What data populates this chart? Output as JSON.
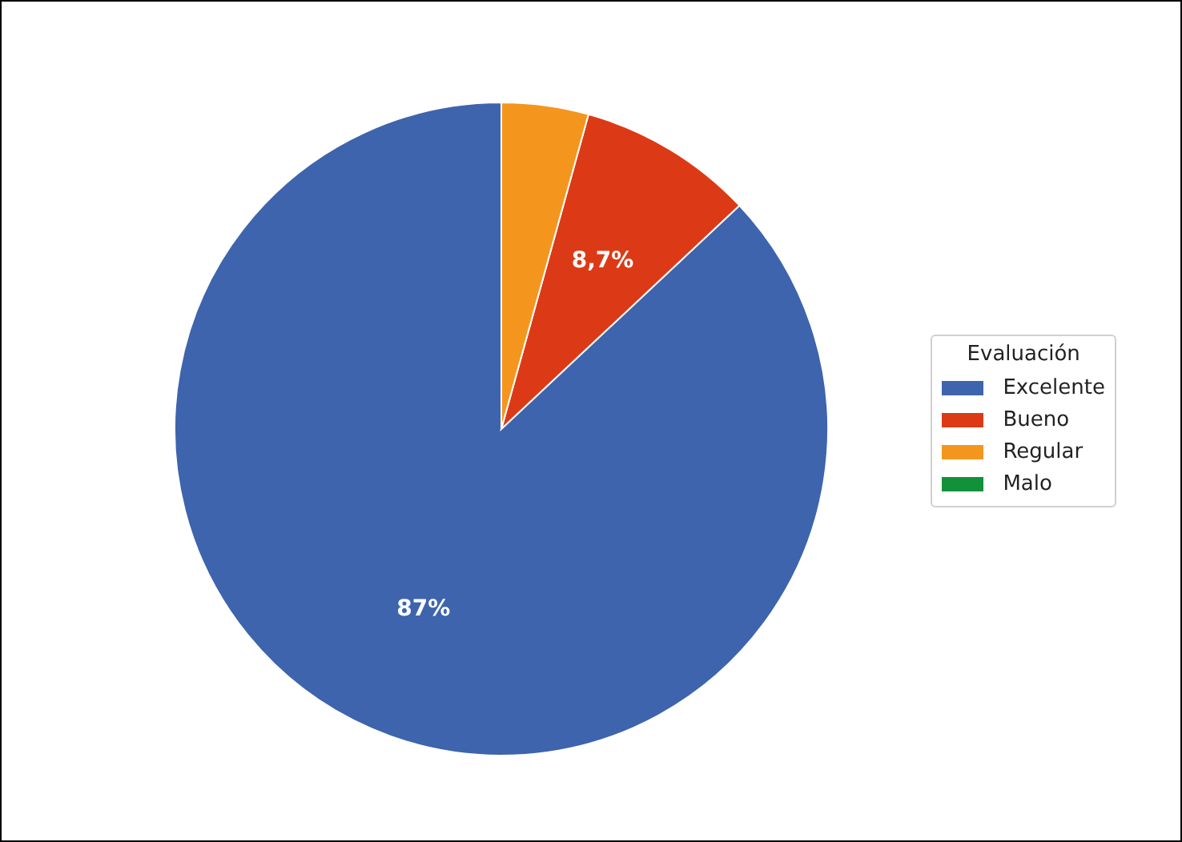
{
  "chart_data": {
    "type": "pie",
    "legend_title": "Evaluación",
    "categories": [
      "Excelente",
      "Bueno",
      "Regular",
      "Malo"
    ],
    "values": [
      87,
      8.7,
      4.3,
      0
    ],
    "colors": [
      "#3d64ad",
      "#dc3a16",
      "#f4961e",
      "#11923a"
    ],
    "value_labels": [
      "87%",
      "8,7%",
      null,
      null
    ],
    "legend": "right"
  }
}
